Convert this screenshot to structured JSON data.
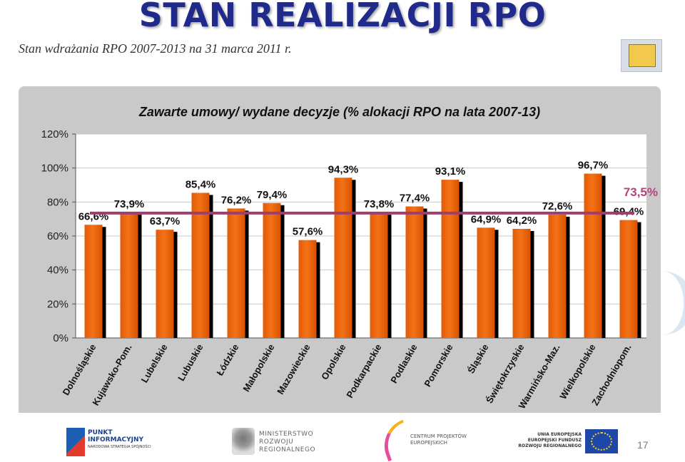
{
  "slide": {
    "title": "STAN REALIZACJI RPO",
    "subtitle": "Stan wdrażania RPO 2007-2013 na 31 marca 2011 r.",
    "page_number": "17"
  },
  "footer": {
    "punkt_line1": "PUNKT",
    "punkt_line2": "INFORMACYJNY",
    "punkt_line3": "NARODOWA STRATEGIA SPÓJNOŚCI",
    "ministerstwo_line1": "MINISTERSTWO",
    "ministerstwo_line2": "ROZWOJU",
    "ministerstwo_line3": "REGIONALNEGO",
    "cpe_line1": "CENTRUM PROJEKTÓW",
    "cpe_line2": "EUROPEJSKICH",
    "eu_line1": "UNIA EUROPEJSKA",
    "eu_line2": "EUROPEJSKI FUNDUSZ",
    "eu_line3": "ROZWOJU REGIONALNEGO"
  },
  "colors": {
    "title": "#1f2a8a",
    "bar": "#f47216",
    "bar_shadow": "#000000",
    "average_line": "#9e3e6e",
    "average_label": "#b0457c",
    "panel": "#c9c9c9"
  },
  "chart_data": {
    "type": "bar",
    "title": "Zawarte umowy/ wydane decyzje (% alokacji RPO na lata 2007-13)",
    "categories": [
      "Dolnośląskie",
      "Kujawsko-Pom.",
      "Lubelskie",
      "Lubuskie",
      "Łódzkie",
      "Małopolskie",
      "Mazowieckie",
      "Opolskie",
      "Podkarpackie",
      "Podlaskie",
      "Pomorskie",
      "Śląskie",
      "Świętokrzyskie",
      "Warmińsko-Maz.",
      "Wielkopolskie",
      "Zachodniopom."
    ],
    "values": [
      66.6,
      73.9,
      63.7,
      85.4,
      76.2,
      79.4,
      57.6,
      94.3,
      73.8,
      77.4,
      93.1,
      64.9,
      64.2,
      72.6,
      96.7,
      69.4
    ],
    "value_labels": [
      "66,6%",
      "73,9%",
      "63,7%",
      "85,4%",
      "76,2%",
      "79,4%",
      "57,6%",
      "94,3%",
      "73,8%",
      "77,4%",
      "93,1%",
      "64,9%",
      "64,2%",
      "72,6%",
      "96,7%",
      "69,4%"
    ],
    "average": 73.5,
    "average_label": "73,5%",
    "ylim": [
      0,
      120
    ],
    "y_ticks": [
      0,
      20,
      40,
      60,
      80,
      100,
      120
    ],
    "y_tick_labels": [
      "0%",
      "20%",
      "40%",
      "60%",
      "80%",
      "100%",
      "120%"
    ],
    "grid": true,
    "legend": "none"
  }
}
